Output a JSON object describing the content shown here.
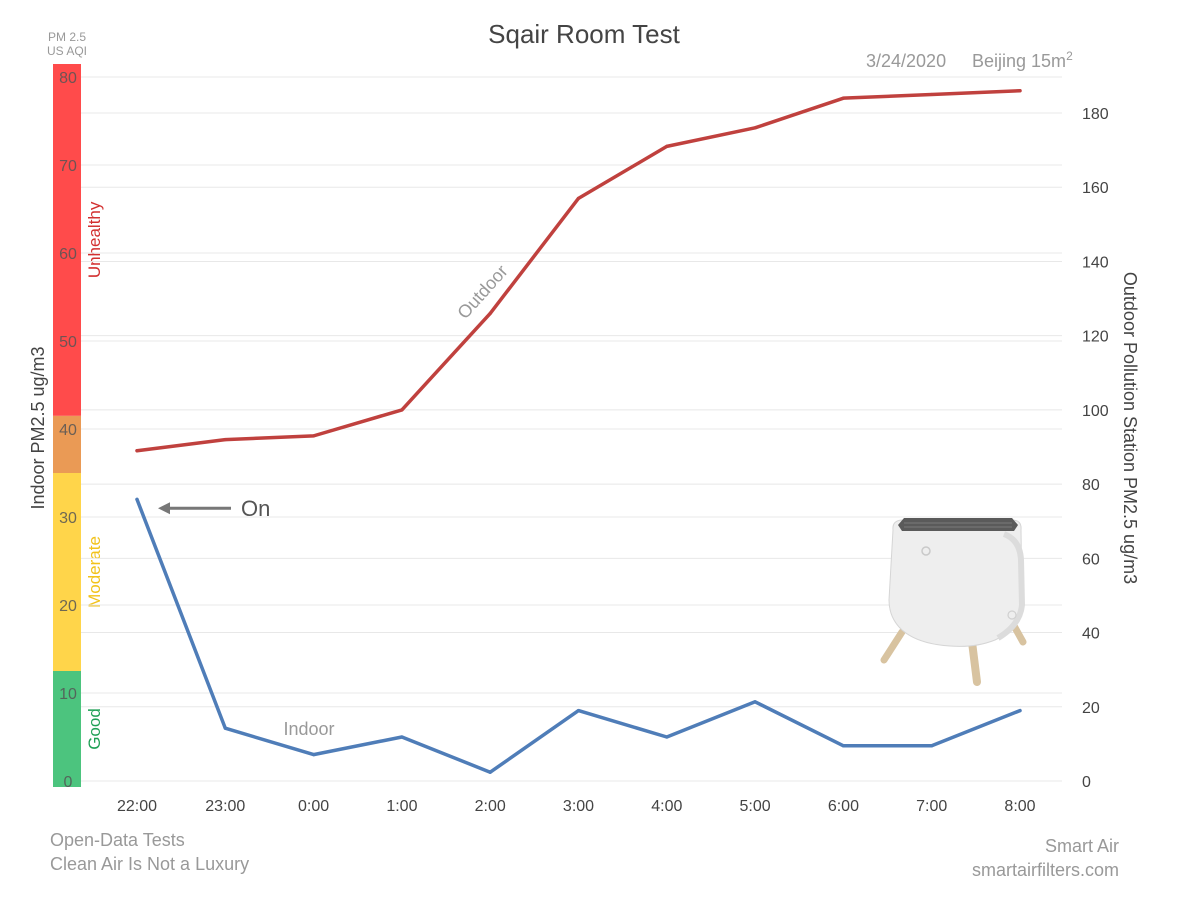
{
  "chart_data": {
    "type": "line",
    "title": "Sqair Room Test",
    "subtitle_date": "3/24/2020",
    "subtitle_location": "Beijing 15m",
    "subtitle_location_sup": "2",
    "aqi_label_line1": "PM 2.5",
    "aqi_label_line2": "US AQI",
    "ylabel_left": "Indoor PM2.5 ug/m3",
    "ylabel_right": "Outdoor Pollution Station PM2.5 ug/m3",
    "categories": [
      "22:00",
      "23:00",
      "0:00",
      "1:00",
      "2:00",
      "3:00",
      "4:00",
      "5:00",
      "6:00",
      "7:00",
      "8:00"
    ],
    "ylim_left": [
      0,
      80
    ],
    "yticks_left": [
      "0",
      "10",
      "20",
      "30",
      "40",
      "50",
      "60",
      "70",
      "80"
    ],
    "ylim_right": [
      0,
      190
    ],
    "yticks_right": [
      "0",
      "20",
      "40",
      "60",
      "80",
      "100",
      "120",
      "140",
      "160",
      "180"
    ],
    "grid": true,
    "series": [
      {
        "name": "Indoor",
        "axis": "left",
        "color": "#4f7db8",
        "values": [
          32,
          6,
          3,
          5,
          1,
          8,
          5,
          9,
          4,
          4,
          8
        ]
      },
      {
        "name": "Outdoor",
        "axis": "right",
        "color": "#c0413e",
        "values": [
          89,
          92,
          93,
          100,
          126,
          157,
          171,
          176,
          184,
          185,
          186
        ]
      }
    ],
    "aqi_bands": [
      {
        "label": "Good",
        "from": 0,
        "to": 12.5,
        "color": "#4cc47e",
        "label_color": "#1fa055"
      },
      {
        "label": "Moderate",
        "from": 12.5,
        "to": 35,
        "color": "#ffd54a",
        "label_color": "#f2c21a"
      },
      {
        "label": "",
        "from": 35,
        "to": 41.5,
        "color": "#ea9a55"
      },
      {
        "label": "Unhealthy",
        "from": 41.5,
        "to": 81,
        "color": "#ff4b4b",
        "label_color": "#d23030"
      }
    ],
    "annotation": {
      "text": "On",
      "x_index": 0,
      "y": 31
    }
  },
  "footer": {
    "left_line1": "Open-Data Tests",
    "left_line2": "Clean Air Is Not a Luxury",
    "right_line1": "Smart Air",
    "right_line2": "smartairfilters.com"
  },
  "colors": {
    "grid": "#e8e8e8",
    "text_dark": "#444444",
    "text_gray": "#999999"
  },
  "image": {
    "icon": "air-purifier-icon"
  }
}
